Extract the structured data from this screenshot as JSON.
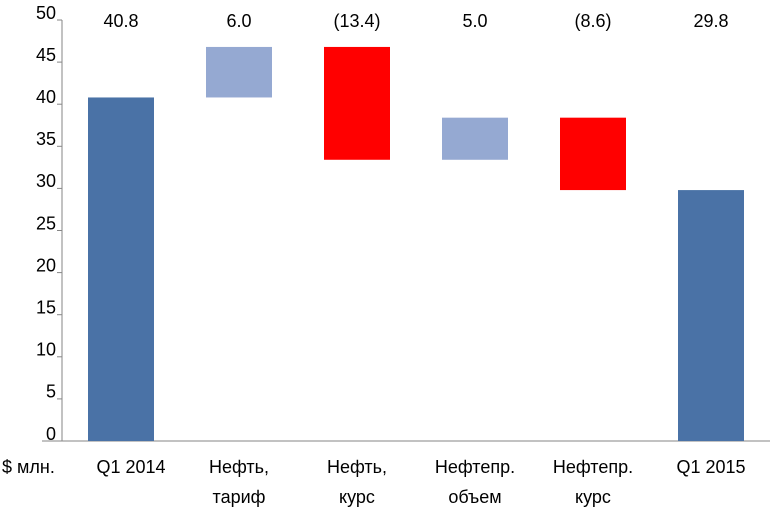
{
  "chart_data": {
    "type": "waterfall",
    "y_label": "$ млн.",
    "categories": [
      [
        "Q1 2014"
      ],
      [
        "Нефть,",
        "тариф"
      ],
      [
        "Нефть,",
        "курс"
      ],
      [
        "Нефтепр.",
        "объем"
      ],
      [
        "Нефтепр.",
        "курс"
      ],
      [
        "Q1 2015"
      ]
    ],
    "values": [
      40.8,
      6.0,
      -13.4,
      5.0,
      -8.6,
      29.8
    ],
    "value_labels": [
      "40.8",
      "6.0",
      "(13.4)",
      "5.0",
      "(8.6)",
      "29.8"
    ],
    "measures": [
      "total",
      "relative",
      "relative",
      "relative",
      "relative",
      "total"
    ],
    "colors": [
      "#4a72a6",
      "#95a9d2",
      "#ff0000",
      "#95a9d2",
      "#ff0000",
      "#4a72a6"
    ],
    "ylim": [
      0,
      50
    ],
    "yticks": [
      0,
      5,
      10,
      15,
      20,
      25,
      30,
      35,
      40,
      45,
      50
    ],
    "grid": false
  }
}
